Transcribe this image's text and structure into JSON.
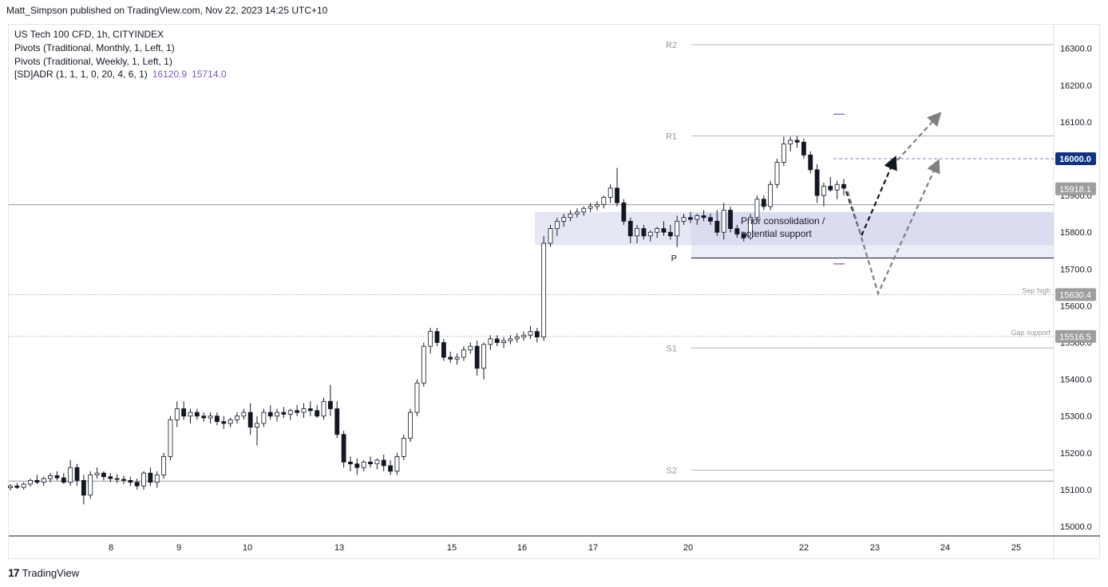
{
  "header": {
    "published_text": "Matt_Simpson published on TradingView.com, Nov 22, 2023 14:25 UTC+10"
  },
  "legend": {
    "symbol": "US Tech 100 CFD, 1h, CITYINDEX",
    "pivots_monthly": "Pivots (Traditional, Monthly, 1, Left, 1)",
    "pivots_weekly": "Pivots (Traditional, Weekly, 1, Left, 1)",
    "adr": "[SD]ADR (1, 1, 1, 0, 20, 4, 6, 1)",
    "adr_high": "16120.9",
    "adr_low": "15714.0"
  },
  "footer": {
    "brand": "TradingView",
    "logo": "tradingview-logo-icon"
  },
  "colors": {
    "up_candle": "#ffffff",
    "down_candle": "#131722",
    "zone_fill": "#c5cae9",
    "current_price_badge": "#0d3383",
    "price_tag_grey": "#9e9e9e",
    "grid": "#b2b5be",
    "adr_lines": "#9575cd"
  },
  "chart_data": {
    "type": "candlestick",
    "y_axis": {
      "range": [
        14970,
        16360
      ],
      "ticks": [
        15000,
        15100,
        15200,
        15300,
        15400,
        15500,
        15600,
        15700,
        15800,
        15900,
        16000,
        16100,
        16200,
        16300
      ],
      "tick_labels": [
        "15000.0",
        "15100.0",
        "15200.0",
        "15300.0",
        "15400.0",
        "15500.0",
        "15600.0",
        "15700.0",
        "15800.0",
        "15900.0",
        "16000.0",
        "16100.0",
        "16200.0",
        "16300.0"
      ],
      "position": "right"
    },
    "x_axis": {
      "tick_labels": [
        "8",
        "9",
        "10",
        "13",
        "15",
        "16",
        "17",
        "20",
        "22",
        "23",
        "24",
        "25"
      ]
    },
    "price_tags": [
      {
        "value": 16000.0,
        "label": "16000.0",
        "style": "current"
      },
      {
        "value": 15918.1,
        "label": "15918.1",
        "style": "grey"
      },
      {
        "value": 15630.4,
        "label": "15630.4",
        "style": "grey"
      },
      {
        "value": 15516.5,
        "label": "15516.5",
        "style": "grey"
      }
    ],
    "pivot_levels": [
      {
        "name": "R2",
        "value": 16310
      },
      {
        "name": "R1",
        "value": 16062
      },
      {
        "name": "P",
        "value": 15730
      },
      {
        "name": "S1",
        "value": 15485
      },
      {
        "name": "S2",
        "value": 15153
      }
    ],
    "horizontal_lines": [
      {
        "label": "Sep high",
        "value": 15630.4,
        "style": "dotted"
      },
      {
        "label": "Gap support",
        "value": 15516.5,
        "style": "dotted"
      },
      {
        "label": "",
        "value": 15875,
        "style": "solid"
      },
      {
        "label": "",
        "value": 15123,
        "style": "solid"
      },
      {
        "label": "",
        "value": 16000,
        "style": "dashed"
      }
    ],
    "zones": [
      {
        "label": "Prior consolidation / potential support",
        "low": 15765,
        "high": 15855
      }
    ],
    "adr_marks": [
      16120.9,
      15714.0
    ],
    "candles_ohlc": [
      [
        15105,
        15115,
        15098,
        15110
      ],
      [
        15110,
        15118,
        15102,
        15106
      ],
      [
        15106,
        15120,
        15100,
        15115
      ],
      [
        15115,
        15130,
        15108,
        15125
      ],
      [
        15125,
        15140,
        15115,
        15120
      ],
      [
        15120,
        15135,
        15110,
        15130
      ],
      [
        15130,
        15145,
        15120,
        15138
      ],
      [
        15138,
        15150,
        15125,
        15132
      ],
      [
        15132,
        15145,
        15115,
        15120
      ],
      [
        15120,
        15180,
        15110,
        15160
      ],
      [
        15160,
        15170,
        15110,
        15125
      ],
      [
        15125,
        15140,
        15060,
        15085
      ],
      [
        15085,
        15150,
        15075,
        15140
      ],
      [
        15140,
        15160,
        15130,
        15145
      ],
      [
        15145,
        15150,
        15125,
        15135
      ],
      [
        15135,
        15145,
        15120,
        15130
      ],
      [
        15130,
        15142,
        15118,
        15128
      ],
      [
        15128,
        15138,
        15115,
        15125
      ],
      [
        15125,
        15135,
        15110,
        15120
      ],
      [
        15120,
        15130,
        15100,
        15110
      ],
      [
        15110,
        15150,
        15100,
        15145
      ],
      [
        15145,
        15160,
        15110,
        15120
      ],
      [
        15120,
        15150,
        15105,
        15140
      ],
      [
        15140,
        15200,
        15130,
        15190
      ],
      [
        15190,
        15300,
        15180,
        15290
      ],
      [
        15290,
        15340,
        15270,
        15320
      ],
      [
        15320,
        15340,
        15290,
        15300
      ],
      [
        15300,
        15320,
        15280,
        15310
      ],
      [
        15310,
        15320,
        15290,
        15300
      ],
      [
        15300,
        15310,
        15285,
        15295
      ],
      [
        15295,
        15310,
        15280,
        15300
      ],
      [
        15300,
        15310,
        15275,
        15285
      ],
      [
        15285,
        15300,
        15265,
        15280
      ],
      [
        15280,
        15295,
        15270,
        15290
      ],
      [
        15290,
        15310,
        15280,
        15300
      ],
      [
        15300,
        15320,
        15290,
        15310
      ],
      [
        15310,
        15335,
        15250,
        15270
      ],
      [
        15270,
        15300,
        15220,
        15280
      ],
      [
        15280,
        15320,
        15270,
        15310
      ],
      [
        15310,
        15330,
        15290,
        15300
      ],
      [
        15300,
        15320,
        15285,
        15310
      ],
      [
        15310,
        15325,
        15295,
        15305
      ],
      [
        15305,
        15320,
        15290,
        15315
      ],
      [
        15315,
        15330,
        15300,
        15310
      ],
      [
        15310,
        15335,
        15295,
        15320
      ],
      [
        15320,
        15340,
        15300,
        15315
      ],
      [
        15315,
        15330,
        15295,
        15300
      ],
      [
        15300,
        15350,
        15290,
        15340
      ],
      [
        15340,
        15385,
        15300,
        15320
      ],
      [
        15320,
        15340,
        15240,
        15250
      ],
      [
        15250,
        15260,
        15160,
        15175
      ],
      [
        15175,
        15190,
        15150,
        15170
      ],
      [
        15170,
        15185,
        15140,
        15160
      ],
      [
        15160,
        15180,
        15150,
        15175
      ],
      [
        15175,
        15190,
        15160,
        15170
      ],
      [
        15170,
        15185,
        15155,
        15180
      ],
      [
        15180,
        15195,
        15150,
        15165
      ],
      [
        15165,
        15180,
        15140,
        15150
      ],
      [
        15150,
        15200,
        15140,
        15190
      ],
      [
        15190,
        15250,
        15180,
        15240
      ],
      [
        15240,
        15320,
        15230,
        15310
      ],
      [
        15310,
        15400,
        15300,
        15390
      ],
      [
        15390,
        15500,
        15380,
        15490
      ],
      [
        15490,
        15540,
        15470,
        15530
      ],
      [
        15530,
        15540,
        15490,
        15500
      ],
      [
        15500,
        15510,
        15450,
        15460
      ],
      [
        15460,
        15475,
        15445,
        15455
      ],
      [
        15455,
        15470,
        15440,
        15460
      ],
      [
        15460,
        15490,
        15450,
        15480
      ],
      [
        15480,
        15500,
        15470,
        15490
      ],
      [
        15490,
        15505,
        15410,
        15430
      ],
      [
        15430,
        15500,
        15400,
        15495
      ],
      [
        15495,
        15520,
        15480,
        15510
      ],
      [
        15510,
        15520,
        15490,
        15500
      ],
      [
        15500,
        15515,
        15485,
        15505
      ],
      [
        15505,
        15520,
        15495,
        15510
      ],
      [
        15510,
        15525,
        15500,
        15515
      ],
      [
        15515,
        15530,
        15505,
        15520
      ],
      [
        15520,
        15545,
        15510,
        15530
      ],
      [
        15530,
        15540,
        15500,
        15515
      ],
      [
        15515,
        15790,
        15505,
        15770
      ],
      [
        15770,
        15820,
        15760,
        15810
      ],
      [
        15810,
        15840,
        15790,
        15830
      ],
      [
        15830,
        15850,
        15815,
        15840
      ],
      [
        15840,
        15860,
        15830,
        15850
      ],
      [
        15850,
        15865,
        15840,
        15855
      ],
      [
        15855,
        15870,
        15845,
        15865
      ],
      [
        15865,
        15880,
        15855,
        15870
      ],
      [
        15870,
        15885,
        15860,
        15875
      ],
      [
        15875,
        15900,
        15865,
        15895
      ],
      [
        15895,
        15930,
        15880,
        15920
      ],
      [
        15920,
        15975,
        15870,
        15880
      ],
      [
        15880,
        15890,
        15820,
        15830
      ],
      [
        15830,
        15840,
        15770,
        15790
      ],
      [
        15790,
        15820,
        15770,
        15810
      ],
      [
        15810,
        15820,
        15780,
        15790
      ],
      [
        15790,
        15805,
        15775,
        15800
      ],
      [
        15800,
        15815,
        15785,
        15810
      ],
      [
        15810,
        15830,
        15790,
        15800
      ],
      [
        15800,
        15820,
        15780,
        15790
      ],
      [
        15790,
        15845,
        15760,
        15830
      ],
      [
        15830,
        15850,
        15820,
        15840
      ],
      [
        15840,
        15855,
        15825,
        15835
      ],
      [
        15835,
        15850,
        15820,
        15845
      ],
      [
        15845,
        15860,
        15830,
        15840
      ],
      [
        15840,
        15850,
        15820,
        15830
      ],
      [
        15830,
        15860,
        15790,
        15800
      ],
      [
        15800,
        15880,
        15780,
        15860
      ],
      [
        15860,
        15870,
        15800,
        15810
      ],
      [
        15810,
        15820,
        15785,
        15795
      ],
      [
        15795,
        15800,
        15775,
        15785
      ],
      [
        15785,
        15850,
        15780,
        15840
      ],
      [
        15840,
        15900,
        15830,
        15890
      ],
      [
        15890,
        15900,
        15860,
        15870
      ],
      [
        15870,
        15940,
        15860,
        15930
      ],
      [
        15930,
        16000,
        15920,
        15990
      ],
      [
        15990,
        16060,
        15980,
        16040
      ],
      [
        16040,
        16060,
        16020,
        16050
      ],
      [
        16050,
        16062,
        16030,
        16045
      ],
      [
        16045,
        16055,
        16000,
        16010
      ],
      [
        16010,
        16020,
        15960,
        15970
      ],
      [
        15970,
        15985,
        15880,
        15900
      ],
      [
        15900,
        15935,
        15870,
        15925
      ],
      [
        15925,
        15950,
        15910,
        15915
      ],
      [
        15915,
        15940,
        15890,
        15930
      ],
      [
        15930,
        15945,
        15900,
        15920
      ]
    ]
  }
}
